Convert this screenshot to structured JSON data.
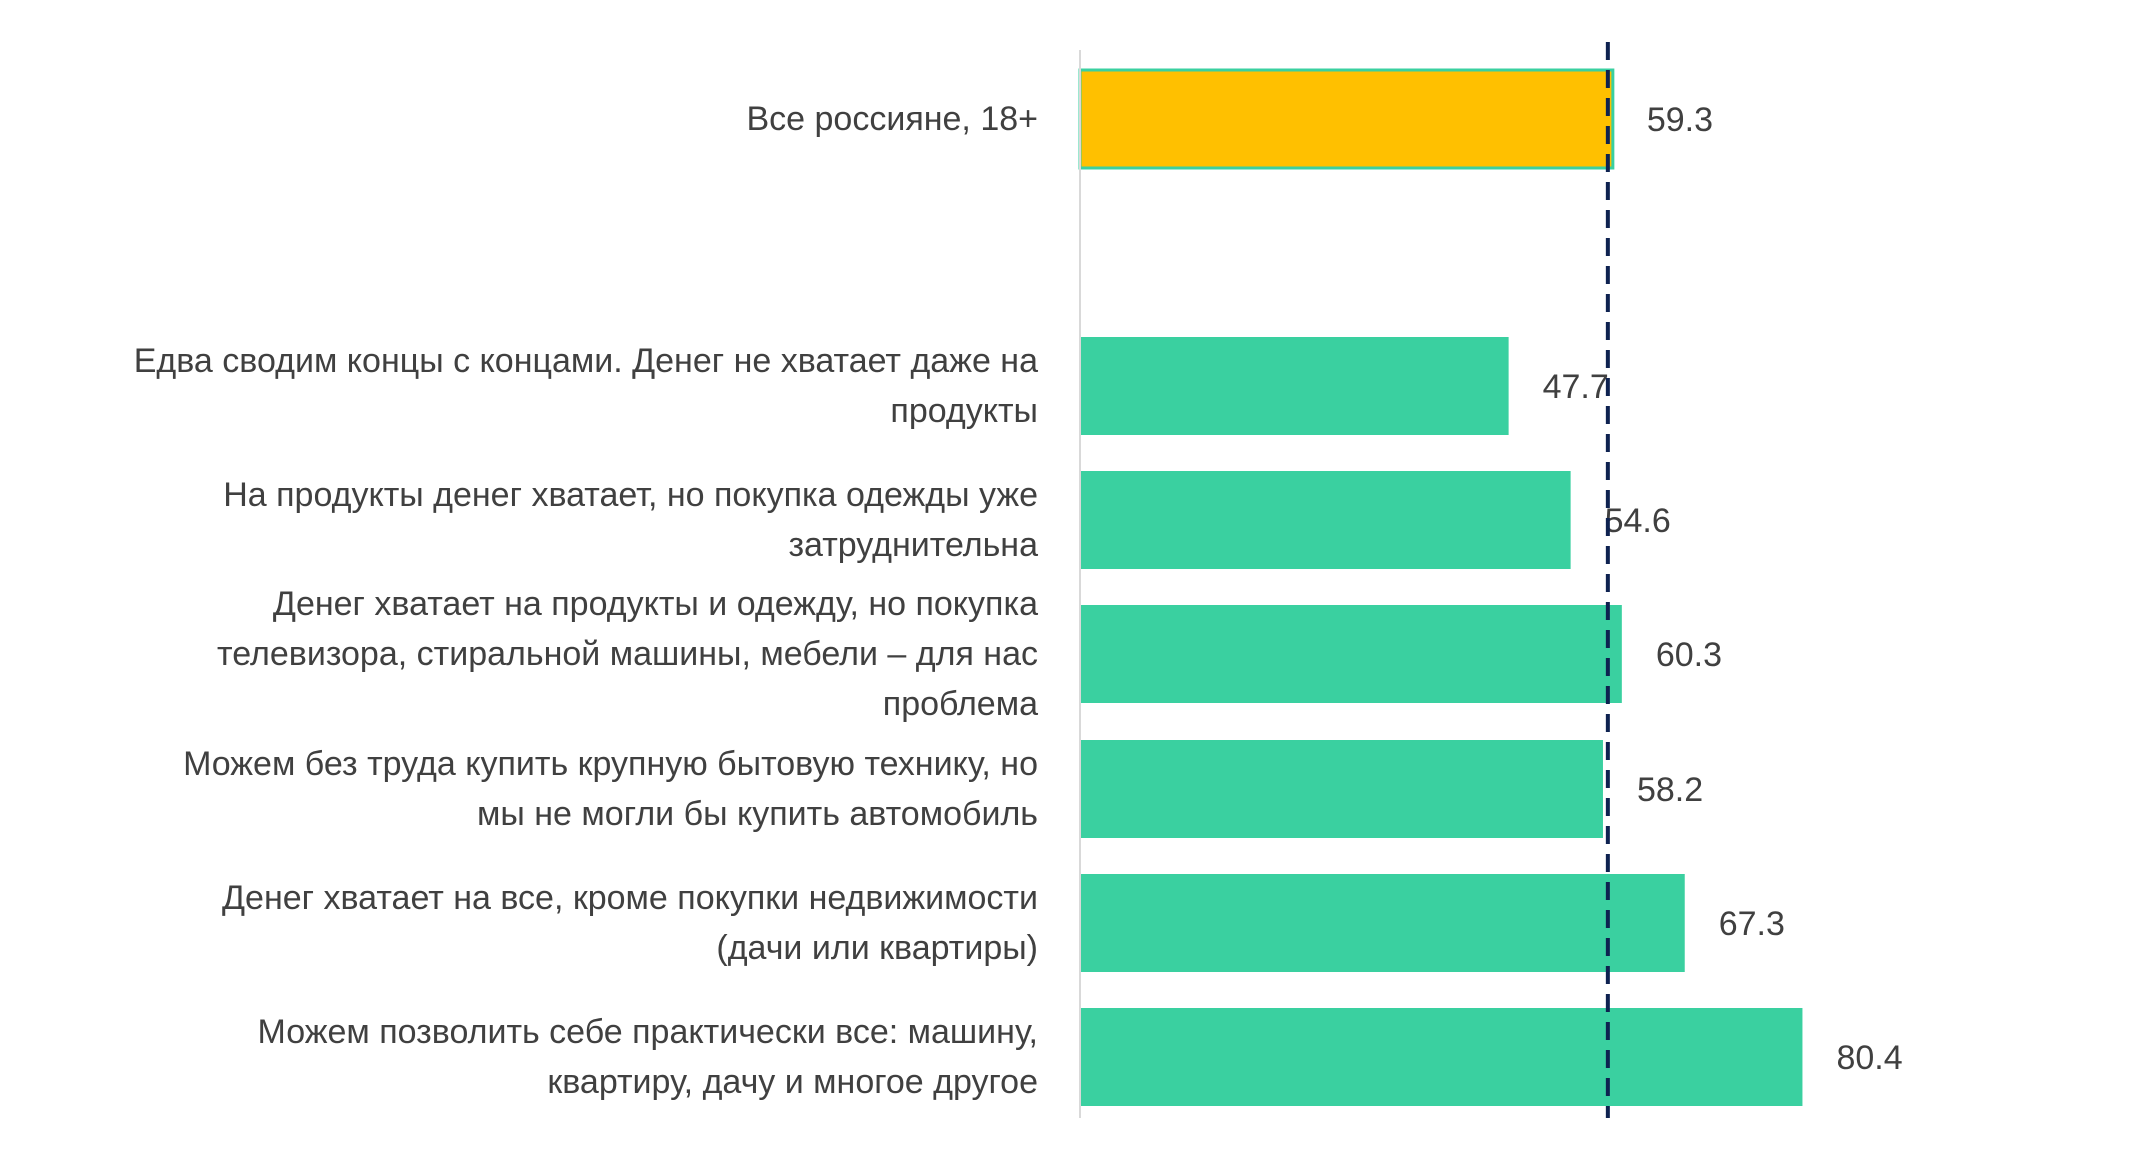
{
  "chart_data": {
    "type": "bar",
    "orientation": "horizontal",
    "title": "",
    "xlabel": "",
    "ylabel": "",
    "grid": false,
    "xlim": [
      0,
      100
    ],
    "categories": [
      [
        "Все россияне, 18+"
      ],
      [
        "Едва сводим концы с концами. Денег не хватает даже на",
        "продукты"
      ],
      [
        "На продукты денег хватает, но покупка одежды уже",
        "затруднительна"
      ],
      [
        "Денег хватает на продукты и одежду, но покупка",
        "телевизора, стиральной машины, мебели – для нас",
        "проблема"
      ],
      [
        "Можем без труда купить крупную бытовую технику, но",
        "мы не могли бы купить автомобиль"
      ],
      [
        "Денег хватает на все, кроме покупки недвижимости",
        "(дачи или квартиры)"
      ],
      [
        "Можем позволить себе практически все: машину,",
        "квартиру, дачу и многое другое"
      ]
    ],
    "values": [
      59.3,
      47.7,
      54.6,
      60.3,
      58.2,
      67.3,
      80.4
    ],
    "value_labels": [
      "59.3",
      "47.7",
      "54.6",
      "60.3",
      "58.2",
      "67.3",
      "80.4"
    ],
    "bar_colors": [
      "#FFC000",
      "#3AD0A0",
      "#3AD0A0",
      "#3AD0A0",
      "#3AD0A0",
      "#3AD0A0",
      "#3AD0A0"
    ],
    "highlight_outline_color": "#3AD0A0",
    "reference_line": {
      "value": 59.3,
      "style": "dashed",
      "color": "#0E2250"
    },
    "axis_color": "#D9D9D9"
  }
}
